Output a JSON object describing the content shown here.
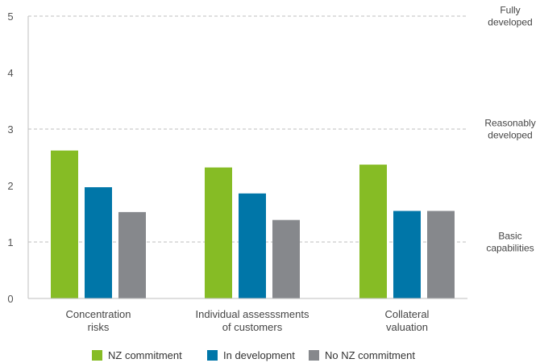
{
  "chart_data": {
    "type": "bar",
    "title": "",
    "xlabel": "",
    "ylabel": "",
    "ylim": [
      0,
      5
    ],
    "yticks": [
      0,
      1,
      2,
      3,
      4,
      5
    ],
    "grid": false,
    "legend_position": "bottom",
    "categories": [
      [
        "Concentration",
        "risks"
      ],
      [
        "Individual assesssments",
        "of customers"
      ],
      [
        "Collateral",
        "valuation"
      ]
    ],
    "series": [
      {
        "name": "NZ commitment",
        "color": "#86bc25",
        "values": [
          2.62,
          2.32,
          2.37
        ]
      },
      {
        "name": "In development",
        "color": "#0076a8",
        "values": [
          1.97,
          1.86,
          1.55
        ]
      },
      {
        "name": "No NZ commitment",
        "color": "#86888c",
        "values": [
          1.53,
          1.39,
          1.55
        ]
      }
    ],
    "reference_lines": [
      {
        "value": 1,
        "label": [
          "Basic",
          "capabilities"
        ]
      },
      {
        "value": 3,
        "label": [
          "Reasonably",
          "developed"
        ]
      },
      {
        "value": 5,
        "label": [
          "Fully",
          "developed"
        ]
      }
    ]
  }
}
